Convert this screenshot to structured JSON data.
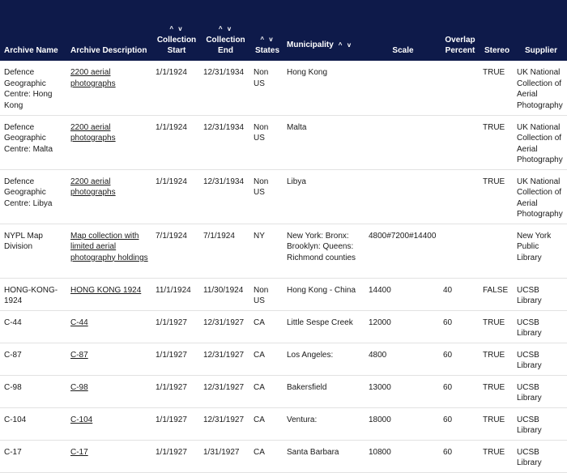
{
  "columns": {
    "archive_name": "Archive Name",
    "archive_description": "Archive Description",
    "collection_start": [
      "Collection",
      "Start"
    ],
    "collection_end": [
      "Collection",
      "End"
    ],
    "states": "States",
    "municipality": "Municipality",
    "scale": "Scale",
    "overlap_percent": [
      "Overlap",
      "Percent"
    ],
    "stereo": "Stereo",
    "supplier": "Supplier"
  },
  "sort_arrows": "^ v",
  "rows": [
    {
      "archive_name": "Defence Geographic Centre: Hong Kong",
      "archive_description": "2200 aerial photographs",
      "collection_start": "1/1/1924",
      "collection_end": "12/31/1934",
      "states": "Non US",
      "municipality": "Hong Kong",
      "scale": "",
      "overlap_percent": "",
      "stereo": "TRUE",
      "supplier": "UK National Collection of Aerial Photography"
    },
    {
      "archive_name": "Defence Geographic Centre: Malta",
      "archive_description": "2200 aerial photographs",
      "collection_start": "1/1/1924",
      "collection_end": "12/31/1934",
      "states": "Non US",
      "municipality": "Malta",
      "scale": "",
      "overlap_percent": "",
      "stereo": "TRUE",
      "supplier": "UK National Collection of Aerial Photography"
    },
    {
      "archive_name": "Defence Geographic Centre: Libya",
      "archive_description": "2200 aerial photographs",
      "collection_start": "1/1/1924",
      "collection_end": "12/31/1934",
      "states": "Non US",
      "municipality": "Libya",
      "scale": "",
      "overlap_percent": "",
      "stereo": "TRUE",
      "supplier": "UK National Collection of Aerial Photography"
    },
    {
      "archive_name": "NYPL Map Division",
      "archive_description": "Map collection with limited aerial photography holdings",
      "collection_start": "7/1/1924",
      "collection_end": "7/1/1924",
      "states": "NY",
      "municipality": "New York: Bronx: Brooklyn: Queens: Richmond counties",
      "scale": "4800#7200#14400",
      "overlap_percent": "",
      "stereo": "",
      "supplier": "New York Public Library"
    },
    {
      "archive_name": "HONG-KONG-1924",
      "archive_description": "HONG KONG 1924",
      "collection_start": "11/1/1924",
      "collection_end": "11/30/1924",
      "states": "Non US",
      "municipality": "Hong Kong - China",
      "scale": "14400",
      "overlap_percent": "40",
      "stereo": "FALSE",
      "supplier": "UCSB Library"
    },
    {
      "archive_name": "C-44",
      "archive_description": "C-44",
      "collection_start": "1/1/1927",
      "collection_end": "12/31/1927",
      "states": "CA",
      "municipality": "Little Sespe Creek",
      "scale": "12000",
      "overlap_percent": "60",
      "stereo": "TRUE",
      "supplier": "UCSB Library"
    },
    {
      "archive_name": "C-87",
      "archive_description": "C-87",
      "collection_start": "1/1/1927",
      "collection_end": "12/31/1927",
      "states": "CA",
      "municipality": "Los Angeles:",
      "scale": "4800",
      "overlap_percent": "60",
      "stereo": "TRUE",
      "supplier": "UCSB Library"
    },
    {
      "archive_name": "C-98",
      "archive_description": "C-98",
      "collection_start": "1/1/1927",
      "collection_end": "12/31/1927",
      "states": "CA",
      "municipality": "Bakersfield",
      "scale": "13000",
      "overlap_percent": "60",
      "stereo": "TRUE",
      "supplier": "UCSB Library"
    },
    {
      "archive_name": "C-104",
      "archive_description": "C-104",
      "collection_start": "1/1/1927",
      "collection_end": "12/31/1927",
      "states": "CA",
      "municipality": "Ventura:",
      "scale": "18000",
      "overlap_percent": "60",
      "stereo": "TRUE",
      "supplier": "UCSB Library"
    },
    {
      "archive_name": "C-17",
      "archive_description": "C-17",
      "collection_start": "1/1/1927",
      "collection_end": "1/31/1927",
      "states": "CA",
      "municipality": "Santa Barbara",
      "scale": "10800",
      "overlap_percent": "60",
      "stereo": "TRUE",
      "supplier": "UCSB Library"
    }
  ]
}
